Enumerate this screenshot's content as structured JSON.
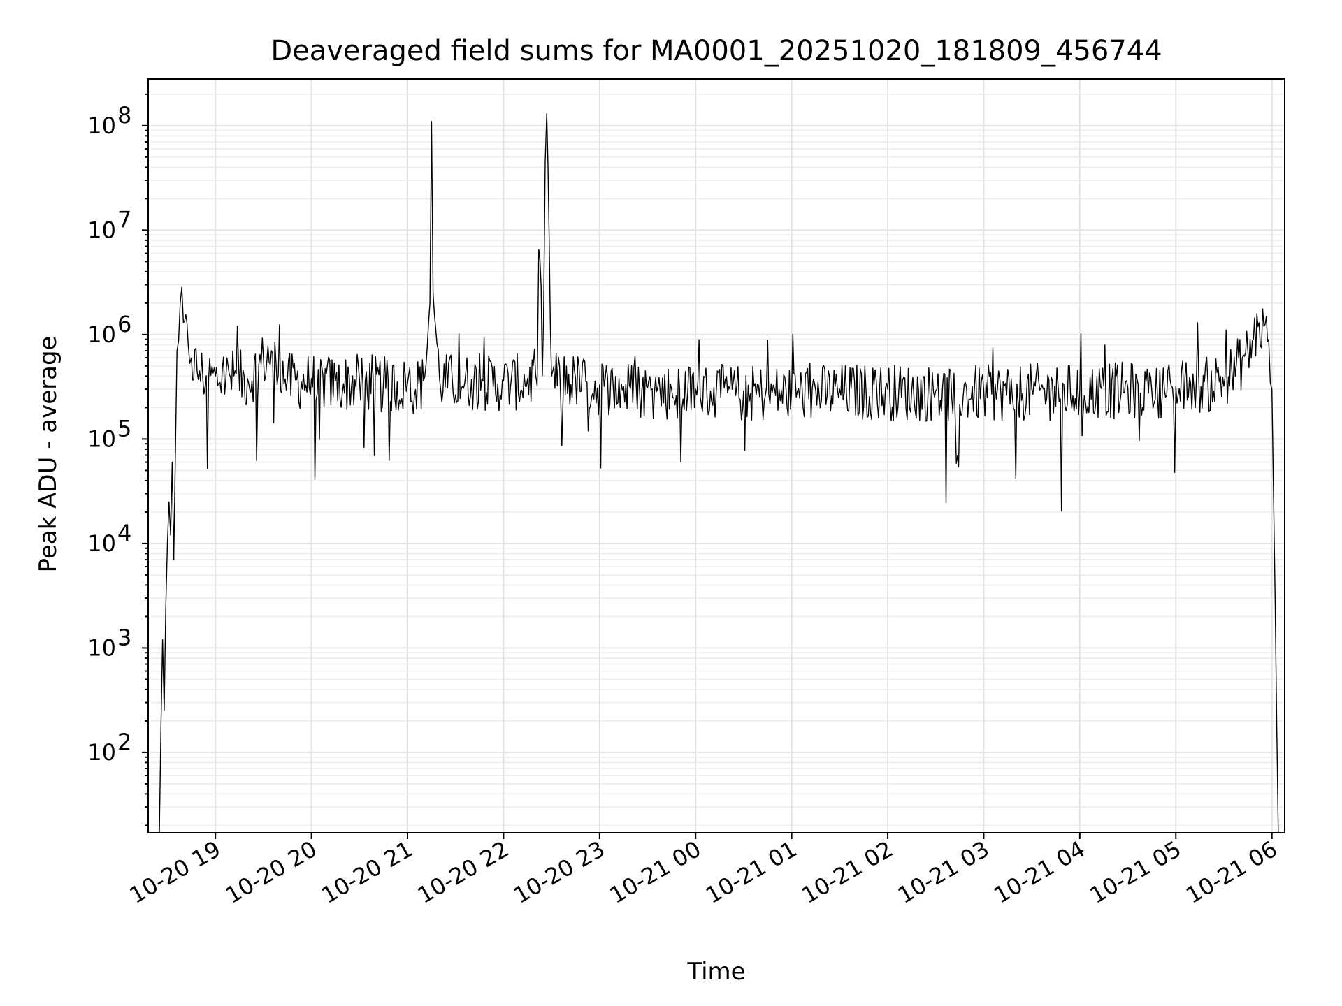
{
  "chart_data": {
    "type": "line",
    "title": "Deaveraged field sums for MA0001_20251020_181809_456744",
    "xlabel": "Time",
    "ylabel": "Peak ADU - average",
    "yscale": "log",
    "ylim": [
      17,
      280000000
    ],
    "xlim": [
      "2025-10-20T18:18:00",
      "2025-10-21T06:08:00"
    ],
    "grid": true,
    "grid_minor": true,
    "line_color": "#000000",
    "y_ticks": [
      {
        "value": 100,
        "base": "10",
        "exp": "2"
      },
      {
        "value": 1000,
        "base": "10",
        "exp": "3"
      },
      {
        "value": 10000,
        "base": "10",
        "exp": "4"
      },
      {
        "value": 100000,
        "base": "10",
        "exp": "5"
      },
      {
        "value": 1000000,
        "base": "10",
        "exp": "6"
      },
      {
        "value": 10000000,
        "base": "10",
        "exp": "7"
      },
      {
        "value": 100000000,
        "base": "10",
        "exp": "8"
      }
    ],
    "x_ticks": [
      {
        "value": "2025-10-20T19:00:00",
        "label": "10-20 19"
      },
      {
        "value": "2025-10-20T20:00:00",
        "label": "10-20 20"
      },
      {
        "value": "2025-10-20T21:00:00",
        "label": "10-20 21"
      },
      {
        "value": "2025-10-20T22:00:00",
        "label": "10-20 22"
      },
      {
        "value": "2025-10-20T23:00:00",
        "label": "10-20 23"
      },
      {
        "value": "2025-10-21T00:00:00",
        "label": "10-21 00"
      },
      {
        "value": "2025-10-21T01:00:00",
        "label": "10-21 01"
      },
      {
        "value": "2025-10-21T02:00:00",
        "label": "10-21 02"
      },
      {
        "value": "2025-10-21T03:00:00",
        "label": "10-21 03"
      },
      {
        "value": "2025-10-21T04:00:00",
        "label": "10-21 04"
      },
      {
        "value": "2025-10-21T05:00:00",
        "label": "10-21 05"
      },
      {
        "value": "2025-10-21T06:00:00",
        "label": "10-21 06"
      }
    ],
    "series": [
      {
        "x": [
          "2025-10-20T18:25:00",
          "2025-10-20T18:26:00",
          "2025-10-20T18:27:00",
          "2025-10-20T18:28:00",
          "2025-10-20T18:29:00",
          "2025-10-20T18:30:00",
          "2025-10-20T18:31:00",
          "2025-10-20T18:32:00",
          "2025-10-20T18:33:00",
          "2025-10-20T18:34:00",
          "2025-10-20T18:36:00",
          "2025-10-20T18:38:00",
          "2025-10-20T18:40:00",
          "2025-10-20T18:43:00",
          "2025-10-20T18:45:00",
          "2025-10-20T18:50:00",
          "2025-10-20T19:00:00",
          "2025-10-20T19:13:00",
          "2025-10-20T19:20:00",
          "2025-10-20T19:30:00",
          "2025-10-20T19:35:00",
          "2025-10-20T19:45:00",
          "2025-10-20T20:00:00",
          "2025-10-20T20:15:00",
          "2025-10-20T20:30:00",
          "2025-10-20T20:45:00",
          "2025-10-20T21:00:00",
          "2025-10-20T21:10:00",
          "2025-10-20T21:14:00",
          "2025-10-20T21:15:00",
          "2025-10-20T21:16:00",
          "2025-10-20T21:20:00",
          "2025-10-20T21:40:00",
          "2025-10-20T22:00:00",
          "2025-10-20T22:15:00",
          "2025-10-20T22:20:00",
          "2025-10-20T22:22:00",
          "2025-10-20T22:25:00",
          "2025-10-20T22:27:00",
          "2025-10-20T22:30:00",
          "2025-10-20T22:45:00",
          "2025-10-20T23:00:00",
          "2025-10-20T23:15:00",
          "2025-10-20T23:30:00",
          "2025-10-20T23:45:00",
          "2025-10-21T00:00:00",
          "2025-10-21T00:30:00",
          "2025-10-21T01:00:00",
          "2025-10-21T01:30:00",
          "2025-10-21T02:00:00",
          "2025-10-21T02:30:00",
          "2025-10-21T03:00:00",
          "2025-10-21T03:30:00",
          "2025-10-21T04:00:00",
          "2025-10-21T04:30:00",
          "2025-10-21T05:00:00",
          "2025-10-21T05:20:00",
          "2025-10-21T05:35:00",
          "2025-10-21T05:45:00",
          "2025-10-21T05:52:00",
          "2025-10-21T05:55:00",
          "2025-10-21T05:58:00",
          "2025-10-21T06:00:00",
          "2025-10-21T06:02:00",
          "2025-10-21T06:03:00",
          "2025-10-21T06:04:00"
        ],
        "y": [
          17,
          180,
          1200,
          250,
          2500,
          10000,
          25000,
          12000,
          60000,
          7000,
          700000,
          2000000,
          1300000,
          800000,
          600000,
          450000,
          400000,
          420000,
          380000,
          600000,
          700000,
          380000,
          380000,
          360000,
          370000,
          350000,
          340000,
          360000,
          2000000,
          110000000,
          2500000,
          380000,
          370000,
          360000,
          380000,
          420000,
          6500000,
          1500000,
          130000000,
          400000,
          380000,
          330000,
          320000,
          310000,
          300000,
          300000,
          290000,
          290000,
          300000,
          300000,
          290000,
          290000,
          300000,
          300000,
          310000,
          320000,
          350000,
          450000,
          700000,
          1300000,
          1200000,
          900000,
          300000,
          3000,
          200,
          17
        ]
      }
    ]
  }
}
